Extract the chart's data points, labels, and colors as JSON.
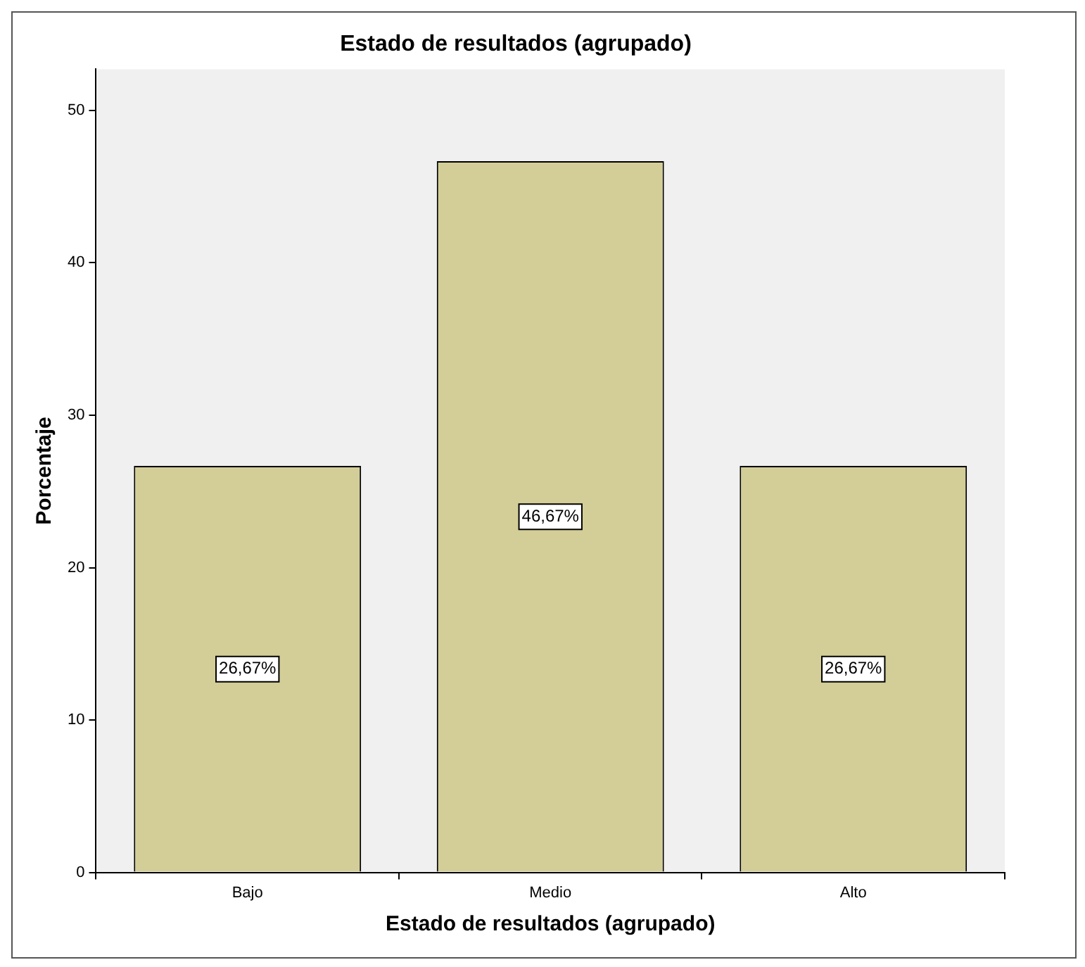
{
  "chart_data": {
    "type": "bar",
    "title": "Estado de resultados (agrupado)",
    "xlabel": "Estado de resultados (agrupado)",
    "ylabel": "Porcentaje",
    "categories": [
      "Bajo",
      "Medio",
      "Alto"
    ],
    "values": [
      26.67,
      46.67,
      26.67
    ],
    "value_labels": [
      "26,67%",
      "46,67%",
      "26,67%"
    ],
    "color": "#d3ce97",
    "ylim": [
      0,
      52.7
    ],
    "yticks": [
      0,
      10,
      20,
      30,
      40,
      50
    ],
    "grid": false,
    "legend": false
  }
}
